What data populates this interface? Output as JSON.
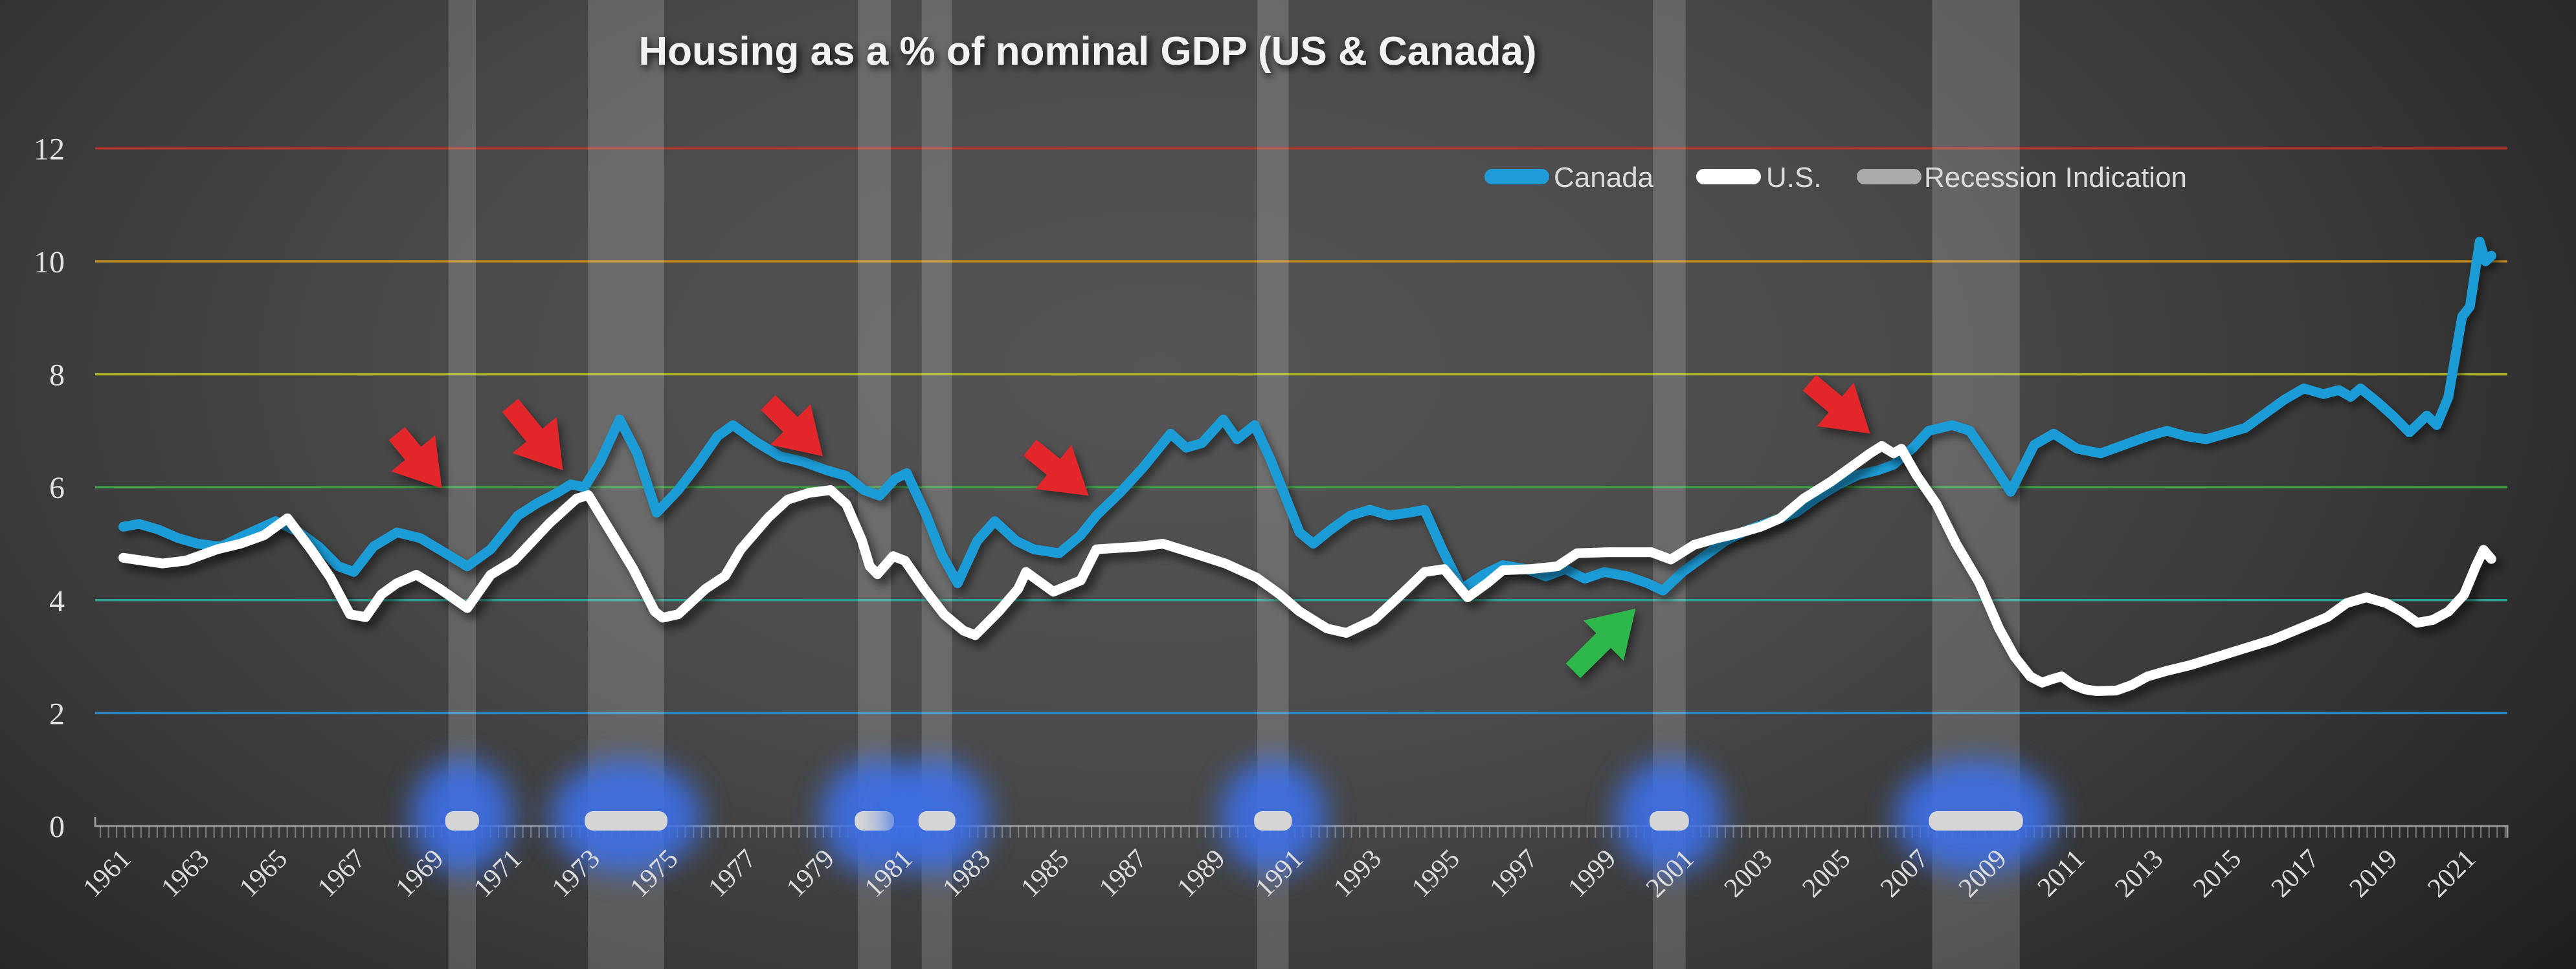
{
  "title": "Housing as a % of nominal GDP (US & Canada)",
  "legend": {
    "items": [
      {
        "label": "Canada",
        "color": "#1f9cd7"
      },
      {
        "label": "U.S.",
        "color": "#ffffff"
      },
      {
        "label": "Recession Indication",
        "color": "#ababab"
      }
    ]
  },
  "chart_data": {
    "type": "line",
    "title": "Housing as a % of nominal GDP (US & Canada)",
    "xlabel": "",
    "ylabel": "",
    "x_range": [
      1960.7,
      2022.3
    ],
    "ylim": [
      0,
      12
    ],
    "grid": "horizontal-colored",
    "legend_position": "top-right",
    "yticks": [
      {
        "value": 0,
        "label": "0",
        "color": null
      },
      {
        "value": 2,
        "label": "2",
        "color": "#2e86c1"
      },
      {
        "value": 4,
        "label": "4",
        "color": "#2e9e8f"
      },
      {
        "value": 6,
        "label": "6",
        "color": "#43a04c"
      },
      {
        "value": 8,
        "label": "8",
        "color": "#a8b324"
      },
      {
        "value": 10,
        "label": "10",
        "color": "#bd8a1d"
      },
      {
        "value": 12,
        "label": "12",
        "color": "#b5352b"
      }
    ],
    "xticks": [
      "1961",
      "1963",
      "1965",
      "1967",
      "1969",
      "1971",
      "1973",
      "1975",
      "1977",
      "1979",
      "1981",
      "1983",
      "1985",
      "1987",
      "1989",
      "1991",
      "1993",
      "1995",
      "1997",
      "1999",
      "2001",
      "2003",
      "2005",
      "2007",
      "2009",
      "2011",
      "2013",
      "2015",
      "2017",
      "2019",
      "2021"
    ],
    "recession_bands": [
      {
        "from": 1969.32,
        "to": 1970.02
      },
      {
        "from": 1972.89,
        "to": 1974.84
      },
      {
        "from": 1979.8,
        "to": 1980.64
      },
      {
        "from": 1981.43,
        "to": 1982.21
      },
      {
        "from": 1990.02,
        "to": 1990.82
      },
      {
        "from": 2000.14,
        "to": 2000.98
      },
      {
        "from": 2007.29,
        "to": 2009.53
      }
    ],
    "annotations": {
      "red_arrows": [
        {
          "tail": [
            1968.0,
            6.95
          ],
          "tip": [
            1969.15,
            5.98
          ]
        },
        {
          "tail": [
            1970.9,
            7.45
          ],
          "tip": [
            1972.25,
            6.3
          ]
        },
        {
          "tail": [
            1977.5,
            7.5
          ],
          "tip": [
            1978.9,
            6.55
          ]
        },
        {
          "tail": [
            1984.2,
            6.7
          ],
          "tip": [
            1985.7,
            5.85
          ]
        },
        {
          "tail": [
            2004.15,
            7.85
          ],
          "tip": [
            2005.7,
            6.95
          ]
        }
      ],
      "green_arrows": [
        {
          "tail": [
            1998.1,
            2.75
          ],
          "tip": [
            1999.7,
            3.85
          ]
        }
      ],
      "red_color": "#e2262b",
      "green_color": "#2db84c"
    },
    "series": [
      {
        "name": "Canada",
        "color": "#1f9cd7",
        "points": [
          [
            1961.0,
            5.3
          ],
          [
            1961.4,
            5.35
          ],
          [
            1961.9,
            5.25
          ],
          [
            1962.4,
            5.1
          ],
          [
            1962.9,
            5.0
          ],
          [
            1963.5,
            4.95
          ],
          [
            1964.1,
            5.15
          ],
          [
            1964.9,
            5.4
          ],
          [
            1965.5,
            5.2
          ],
          [
            1966.0,
            4.95
          ],
          [
            1966.5,
            4.6
          ],
          [
            1966.9,
            4.5
          ],
          [
            1967.4,
            4.95
          ],
          [
            1968.0,
            5.2
          ],
          [
            1968.6,
            5.1
          ],
          [
            1969.2,
            4.85
          ],
          [
            1969.8,
            4.6
          ],
          [
            1970.4,
            4.9
          ],
          [
            1971.1,
            5.5
          ],
          [
            1971.6,
            5.72
          ],
          [
            1972.1,
            5.9
          ],
          [
            1972.45,
            6.05
          ],
          [
            1972.8,
            6.0
          ],
          [
            1973.2,
            6.45
          ],
          [
            1973.7,
            7.2
          ],
          [
            1974.15,
            6.6
          ],
          [
            1974.65,
            5.55
          ],
          [
            1975.2,
            5.95
          ],
          [
            1975.7,
            6.4
          ],
          [
            1976.2,
            6.9
          ],
          [
            1976.6,
            7.1
          ],
          [
            1977.2,
            6.8
          ],
          [
            1977.8,
            6.55
          ],
          [
            1978.4,
            6.45
          ],
          [
            1979.0,
            6.3
          ],
          [
            1979.5,
            6.2
          ],
          [
            1979.95,
            5.95
          ],
          [
            1980.35,
            5.85
          ],
          [
            1980.75,
            6.15
          ],
          [
            1981.05,
            6.25
          ],
          [
            1981.55,
            5.5
          ],
          [
            1981.95,
            4.8
          ],
          [
            1982.35,
            4.3
          ],
          [
            1982.85,
            5.05
          ],
          [
            1983.3,
            5.4
          ],
          [
            1983.85,
            5.05
          ],
          [
            1984.3,
            4.9
          ],
          [
            1984.95,
            4.83
          ],
          [
            1985.5,
            5.15
          ],
          [
            1985.9,
            5.5
          ],
          [
            1986.5,
            5.9
          ],
          [
            1987.1,
            6.35
          ],
          [
            1987.8,
            6.95
          ],
          [
            1988.2,
            6.7
          ],
          [
            1988.6,
            6.78
          ],
          [
            1989.15,
            7.2
          ],
          [
            1989.5,
            6.85
          ],
          [
            1989.95,
            7.1
          ],
          [
            1990.35,
            6.5
          ],
          [
            1990.7,
            5.9
          ],
          [
            1991.1,
            5.2
          ],
          [
            1991.45,
            5.0
          ],
          [
            1991.9,
            5.25
          ],
          [
            1992.4,
            5.5
          ],
          [
            1992.9,
            5.6
          ],
          [
            1993.4,
            5.5
          ],
          [
            1993.9,
            5.55
          ],
          [
            1994.3,
            5.6
          ],
          [
            1994.75,
            4.9
          ],
          [
            1995.25,
            4.2
          ],
          [
            1995.8,
            4.45
          ],
          [
            1996.3,
            4.62
          ],
          [
            1996.9,
            4.55
          ],
          [
            1997.4,
            4.42
          ],
          [
            1997.9,
            4.55
          ],
          [
            1998.4,
            4.38
          ],
          [
            1998.9,
            4.5
          ],
          [
            1999.5,
            4.42
          ],
          [
            2000.0,
            4.3
          ],
          [
            2000.4,
            4.17
          ],
          [
            2000.9,
            4.5
          ],
          [
            2001.4,
            4.75
          ],
          [
            2002.0,
            5.05
          ],
          [
            2002.6,
            5.25
          ],
          [
            2003.2,
            5.4
          ],
          [
            2003.8,
            5.55
          ],
          [
            2004.3,
            5.8
          ],
          [
            2004.9,
            6.05
          ],
          [
            2005.4,
            6.22
          ],
          [
            2005.9,
            6.3
          ],
          [
            2006.3,
            6.4
          ],
          [
            2006.8,
            6.7
          ],
          [
            2007.2,
            7.0
          ],
          [
            2007.8,
            7.1
          ],
          [
            2008.25,
            7.0
          ],
          [
            2008.7,
            6.55
          ],
          [
            2009.3,
            5.92
          ],
          [
            2009.9,
            6.75
          ],
          [
            2010.4,
            6.95
          ],
          [
            2011.0,
            6.68
          ],
          [
            2011.6,
            6.6
          ],
          [
            2012.2,
            6.75
          ],
          [
            2012.8,
            6.9
          ],
          [
            2013.3,
            7.0
          ],
          [
            2013.8,
            6.9
          ],
          [
            2014.3,
            6.85
          ],
          [
            2014.8,
            6.95
          ],
          [
            2015.3,
            7.05
          ],
          [
            2015.8,
            7.3
          ],
          [
            2016.3,
            7.55
          ],
          [
            2016.8,
            7.75
          ],
          [
            2017.3,
            7.65
          ],
          [
            2017.7,
            7.72
          ],
          [
            2018.0,
            7.6
          ],
          [
            2018.25,
            7.75
          ],
          [
            2018.7,
            7.5
          ],
          [
            2019.1,
            7.25
          ],
          [
            2019.5,
            6.97
          ],
          [
            2019.95,
            7.27
          ],
          [
            2020.2,
            7.1
          ],
          [
            2020.5,
            7.6
          ],
          [
            2020.85,
            9.02
          ],
          [
            2021.05,
            9.2
          ],
          [
            2021.3,
            10.35
          ],
          [
            2021.45,
            10.0
          ],
          [
            2021.6,
            10.1
          ]
        ]
      },
      {
        "name": "U.S.",
        "color": "#ffffff",
        "points": [
          [
            1961.0,
            4.75
          ],
          [
            1961.5,
            4.7
          ],
          [
            1962.0,
            4.65
          ],
          [
            1962.6,
            4.7
          ],
          [
            1963.4,
            4.9
          ],
          [
            1964.0,
            5.0
          ],
          [
            1964.6,
            5.15
          ],
          [
            1965.2,
            5.45
          ],
          [
            1965.8,
            4.9
          ],
          [
            1966.3,
            4.4
          ],
          [
            1966.8,
            3.75
          ],
          [
            1967.2,
            3.7
          ],
          [
            1967.6,
            4.1
          ],
          [
            1968.0,
            4.3
          ],
          [
            1968.5,
            4.45
          ],
          [
            1969.1,
            4.2
          ],
          [
            1969.8,
            3.86
          ],
          [
            1970.4,
            4.45
          ],
          [
            1971.0,
            4.7
          ],
          [
            1971.9,
            5.36
          ],
          [
            1972.6,
            5.8
          ],
          [
            1972.9,
            5.86
          ],
          [
            1973.5,
            5.18
          ],
          [
            1974.05,
            4.55
          ],
          [
            1974.6,
            3.8
          ],
          [
            1974.8,
            3.69
          ],
          [
            1975.2,
            3.75
          ],
          [
            1975.9,
            4.2
          ],
          [
            1976.4,
            4.43
          ],
          [
            1976.8,
            4.9
          ],
          [
            1977.5,
            5.46
          ],
          [
            1978.0,
            5.78
          ],
          [
            1978.55,
            5.9
          ],
          [
            1979.1,
            5.95
          ],
          [
            1979.5,
            5.7
          ],
          [
            1979.9,
            5.06
          ],
          [
            1980.1,
            4.6
          ],
          [
            1980.3,
            4.46
          ],
          [
            1980.7,
            4.78
          ],
          [
            1981.0,
            4.7
          ],
          [
            1981.5,
            4.2
          ],
          [
            1982.0,
            3.75
          ],
          [
            1982.5,
            3.46
          ],
          [
            1982.8,
            3.38
          ],
          [
            1983.4,
            3.8
          ],
          [
            1983.9,
            4.2
          ],
          [
            1984.1,
            4.5
          ],
          [
            1984.8,
            4.15
          ],
          [
            1985.5,
            4.35
          ],
          [
            1985.9,
            4.9
          ],
          [
            1987.0,
            4.95
          ],
          [
            1987.6,
            5.0
          ],
          [
            1988.3,
            4.85
          ],
          [
            1989.2,
            4.65
          ],
          [
            1990.0,
            4.4
          ],
          [
            1990.6,
            4.1
          ],
          [
            1991.1,
            3.8
          ],
          [
            1991.8,
            3.5
          ],
          [
            1992.3,
            3.42
          ],
          [
            1993.0,
            3.65
          ],
          [
            1993.7,
            4.1
          ],
          [
            1994.3,
            4.5
          ],
          [
            1994.8,
            4.55
          ],
          [
            1995.4,
            4.05
          ],
          [
            1995.9,
            4.3
          ],
          [
            1996.3,
            4.53
          ],
          [
            1997.0,
            4.55
          ],
          [
            1997.7,
            4.6
          ],
          [
            1998.2,
            4.83
          ],
          [
            1999.0,
            4.85
          ],
          [
            1999.7,
            4.85
          ],
          [
            2000.1,
            4.85
          ],
          [
            2000.6,
            4.72
          ],
          [
            2001.2,
            4.98
          ],
          [
            2001.8,
            5.1
          ],
          [
            2002.3,
            5.18
          ],
          [
            2002.9,
            5.3
          ],
          [
            2003.4,
            5.45
          ],
          [
            2004.0,
            5.8
          ],
          [
            2004.7,
            6.1
          ],
          [
            2005.3,
            6.4
          ],
          [
            2005.7,
            6.6
          ],
          [
            2006.0,
            6.73
          ],
          [
            2006.3,
            6.6
          ],
          [
            2006.5,
            6.68
          ],
          [
            2006.9,
            6.2
          ],
          [
            2007.4,
            5.7
          ],
          [
            2007.9,
            5.0
          ],
          [
            2008.5,
            4.3
          ],
          [
            2009.0,
            3.5
          ],
          [
            2009.4,
            3.0
          ],
          [
            2009.8,
            2.65
          ],
          [
            2010.1,
            2.54
          ],
          [
            2010.35,
            2.6
          ],
          [
            2010.6,
            2.65
          ],
          [
            2010.9,
            2.5
          ],
          [
            2011.2,
            2.42
          ],
          [
            2011.5,
            2.39
          ],
          [
            2012.0,
            2.4
          ],
          [
            2012.4,
            2.5
          ],
          [
            2012.8,
            2.65
          ],
          [
            2013.3,
            2.75
          ],
          [
            2013.9,
            2.85
          ],
          [
            2014.6,
            3.0
          ],
          [
            2015.3,
            3.15
          ],
          [
            2016.0,
            3.3
          ],
          [
            2016.7,
            3.5
          ],
          [
            2017.4,
            3.7
          ],
          [
            2017.9,
            3.95
          ],
          [
            2018.4,
            4.05
          ],
          [
            2018.9,
            3.95
          ],
          [
            2019.3,
            3.8
          ],
          [
            2019.7,
            3.6
          ],
          [
            2020.1,
            3.65
          ],
          [
            2020.5,
            3.8
          ],
          [
            2020.9,
            4.1
          ],
          [
            2021.2,
            4.6
          ],
          [
            2021.4,
            4.89
          ],
          [
            2021.6,
            4.73
          ]
        ]
      }
    ]
  }
}
